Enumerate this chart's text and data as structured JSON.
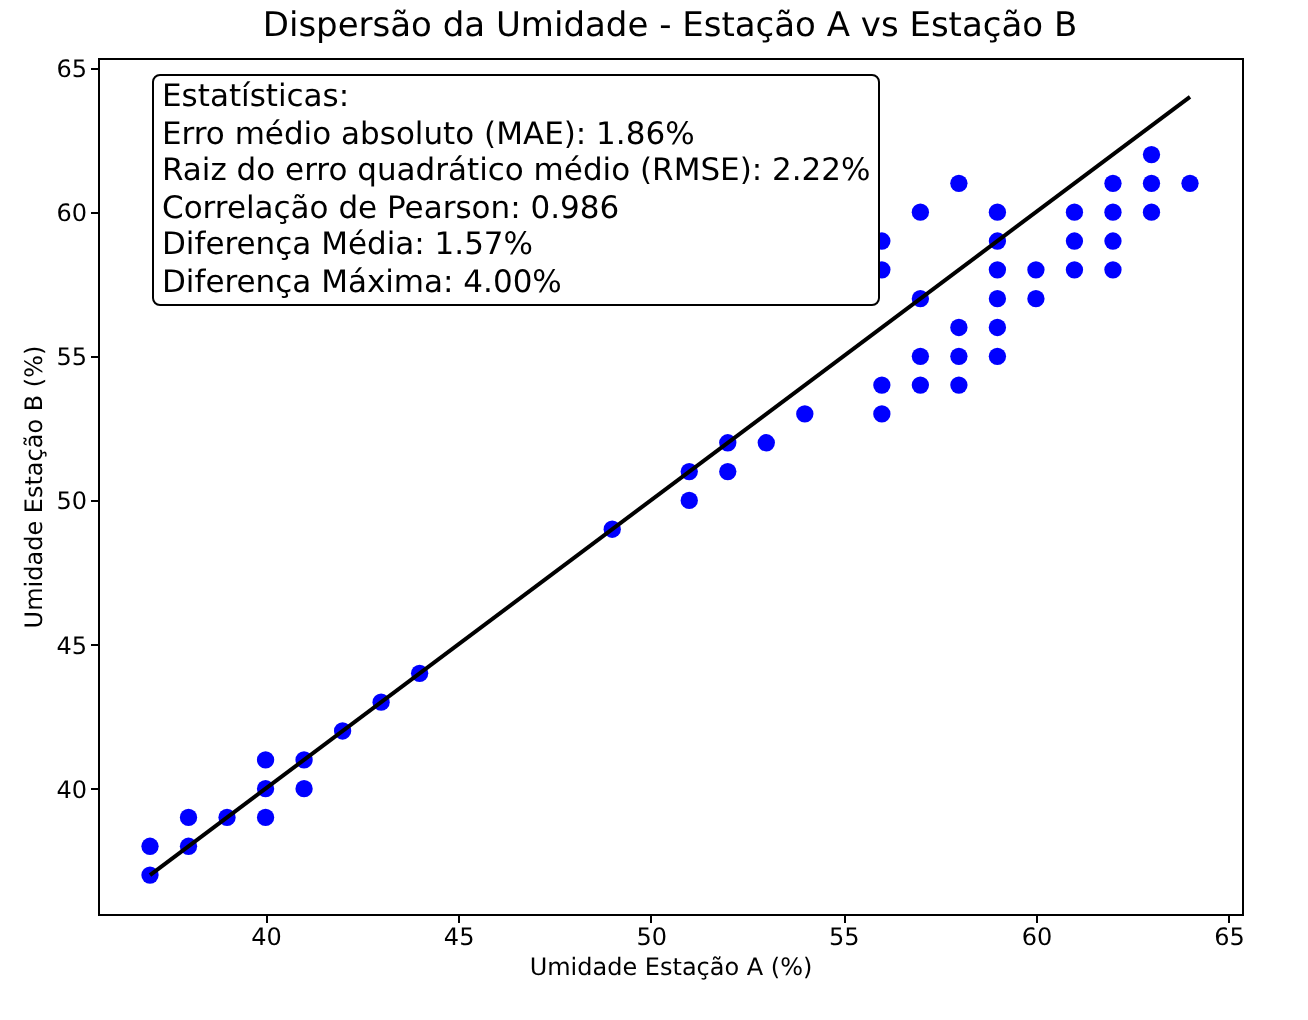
{
  "chart_data": {
    "type": "scatter",
    "title": "Dispersão da Umidade - Estação A vs Estação B",
    "xlabel": "Umidade Estação A (%)",
    "ylabel": "Umidade Estação B (%)",
    "annotations": [
      "Estatísticas:",
      "Erro médio absoluto (MAE): 1.86%",
      "Raiz do erro quadrático médio (RMSE): 2.22%",
      "Correlação de Pearson: 0.986",
      "Diferença Média: 1.57%",
      "Diferença Máxima: 4.00%"
    ],
    "xlim": [
      35.65,
      65.35
    ],
    "ylim": [
      35.65,
      65.35
    ],
    "xticks": [
      40,
      45,
      50,
      55,
      60,
      65
    ],
    "yticks": [
      40,
      45,
      50,
      55,
      60,
      65
    ],
    "grid": false,
    "series": [
      {
        "color": "#0000ff",
        "marker": "circle",
        "x": [
          37,
          37,
          38,
          38,
          39,
          40,
          40,
          40,
          41,
          41,
          42,
          43,
          44,
          49,
          51,
          51,
          52,
          52,
          53,
          54,
          56,
          56,
          56,
          56,
          57,
          57,
          57,
          57,
          58,
          58,
          58,
          58,
          59,
          59,
          59,
          59,
          59,
          59,
          60,
          60,
          61,
          61,
          61,
          62,
          62,
          62,
          62,
          63,
          63,
          63,
          64
        ],
        "values": [
          38,
          37,
          39,
          38,
          39,
          41,
          40,
          39,
          41,
          40,
          42,
          43,
          44,
          49,
          51,
          50,
          52,
          51,
          52,
          53,
          59,
          58,
          54,
          53,
          60,
          57,
          55,
          54,
          61,
          56,
          55,
          54,
          60,
          59,
          58,
          57,
          56,
          55,
          58,
          57,
          60,
          59,
          58,
          61,
          60,
          59,
          58,
          62,
          61,
          60,
          61
        ]
      },
      {
        "type": "line",
        "color": "#000000",
        "x": [
          37,
          64
        ],
        "values": [
          37,
          64
        ],
        "line_style": "solid"
      }
    ]
  }
}
